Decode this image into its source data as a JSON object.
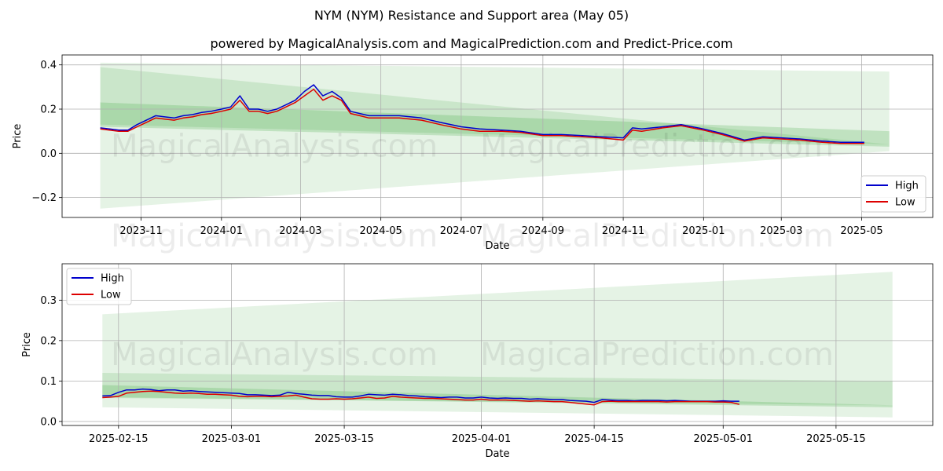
{
  "title": "NYM (NYM) Resistance and Support area (May 05)",
  "subtitle": "powered by MagicalAnalysis.com and MagicalPrediction.com and Predict-Price.com",
  "watermarks": [
    "MagicalAnalysis.com",
    "MagicalPrediction.com"
  ],
  "colors": {
    "high": "#0000cc",
    "low": "#dd0000",
    "band": "#2ca02c"
  },
  "chart_data": [
    {
      "type": "line",
      "xlabel": "Date",
      "ylabel": "Price",
      "xlim": [
        "2023-09-02",
        "2025-06-24"
      ],
      "ylim": [
        -0.29,
        0.445
      ],
      "x_ticks": [
        "2023-11",
        "2024-01",
        "2024-03",
        "2024-05",
        "2024-07",
        "2024-09",
        "2024-11",
        "2025-01",
        "2025-03",
        "2025-05"
      ],
      "y_ticks": [
        -0.2,
        0.0,
        0.2,
        0.4
      ],
      "y_tick_labels": [
        "−0.2",
        "0.0",
        "0.2",
        "0.4"
      ],
      "grid": true,
      "legend_position": "lower right",
      "legend": [
        "High",
        "Low"
      ],
      "bands": [
        {
          "x": [
            "2023-10-01",
            "2025-05-22"
          ],
          "upper": [
            0.41,
            0.37
          ],
          "lower": [
            -0.25,
            0.01
          ]
        },
        {
          "x": [
            "2023-10-01",
            "2025-05-22"
          ],
          "upper": [
            0.39,
            0.04
          ],
          "lower": [
            0.13,
            0.04
          ]
        },
        {
          "x": [
            "2023-10-01",
            "2025-05-22"
          ],
          "upper": [
            0.23,
            0.1
          ],
          "lower": [
            0.12,
            0.03
          ]
        }
      ],
      "series": [
        {
          "name": "High",
          "x": [
            "2023-10-01",
            "2023-10-08",
            "2023-10-15",
            "2023-10-22",
            "2023-10-29",
            "2023-11-05",
            "2023-11-12",
            "2023-11-19",
            "2023-11-26",
            "2023-12-03",
            "2023-12-10",
            "2023-12-17",
            "2023-12-24",
            "2024-01-01",
            "2024-01-08",
            "2024-01-15",
            "2024-01-22",
            "2024-01-29",
            "2024-02-05",
            "2024-02-12",
            "2024-02-19",
            "2024-02-26",
            "2024-03-04",
            "2024-03-11",
            "2024-03-18",
            "2024-03-25",
            "2024-04-01",
            "2024-04-08",
            "2024-04-15",
            "2024-04-22",
            "2024-05-01",
            "2024-05-15",
            "2024-06-01",
            "2024-06-15",
            "2024-07-01",
            "2024-07-15",
            "2024-08-01",
            "2024-08-15",
            "2024-09-01",
            "2024-09-15",
            "2024-10-01",
            "2024-10-15",
            "2024-11-01",
            "2024-11-08",
            "2024-11-15",
            "2024-12-01",
            "2024-12-15",
            "2025-01-01",
            "2025-01-15",
            "2025-02-01",
            "2025-02-15",
            "2025-03-01",
            "2025-03-15",
            "2025-04-01",
            "2025-04-15",
            "2025-05-03"
          ],
          "values": [
            0.115,
            0.11,
            0.105,
            0.105,
            0.13,
            0.15,
            0.17,
            0.165,
            0.16,
            0.17,
            0.175,
            0.185,
            0.19,
            0.2,
            0.21,
            0.26,
            0.2,
            0.2,
            0.19,
            0.2,
            0.22,
            0.24,
            0.28,
            0.31,
            0.26,
            0.28,
            0.25,
            0.19,
            0.18,
            0.17,
            0.17,
            0.17,
            0.16,
            0.14,
            0.12,
            0.11,
            0.105,
            0.1,
            0.085,
            0.085,
            0.08,
            0.075,
            0.07,
            0.115,
            0.11,
            0.12,
            0.13,
            0.11,
            0.09,
            0.06,
            0.075,
            0.07,
            0.065,
            0.055,
            0.05,
            0.05
          ]
        },
        {
          "name": "Low",
          "x": [
            "2023-10-01",
            "2023-10-08",
            "2023-10-15",
            "2023-10-22",
            "2023-10-29",
            "2023-11-05",
            "2023-11-12",
            "2023-11-19",
            "2023-11-26",
            "2023-12-03",
            "2023-12-10",
            "2023-12-17",
            "2023-12-24",
            "2024-01-01",
            "2024-01-08",
            "2024-01-15",
            "2024-01-22",
            "2024-01-29",
            "2024-02-05",
            "2024-02-12",
            "2024-02-19",
            "2024-02-26",
            "2024-03-04",
            "2024-03-11",
            "2024-03-18",
            "2024-03-25",
            "2024-04-01",
            "2024-04-08",
            "2024-04-15",
            "2024-04-22",
            "2024-05-01",
            "2024-05-15",
            "2024-06-01",
            "2024-06-15",
            "2024-07-01",
            "2024-07-15",
            "2024-08-01",
            "2024-08-15",
            "2024-09-01",
            "2024-09-15",
            "2024-10-01",
            "2024-10-15",
            "2024-11-01",
            "2024-11-08",
            "2024-11-15",
            "2024-12-01",
            "2024-12-15",
            "2025-01-01",
            "2025-01-15",
            "2025-02-01",
            "2025-02-15",
            "2025-03-01",
            "2025-03-15",
            "2025-04-01",
            "2025-04-15",
            "2025-05-03"
          ],
          "values": [
            0.11,
            0.105,
            0.1,
            0.1,
            0.12,
            0.14,
            0.16,
            0.155,
            0.15,
            0.16,
            0.165,
            0.175,
            0.18,
            0.19,
            0.2,
            0.24,
            0.19,
            0.19,
            0.18,
            0.19,
            0.21,
            0.23,
            0.26,
            0.29,
            0.24,
            0.26,
            0.24,
            0.18,
            0.17,
            0.16,
            0.16,
            0.16,
            0.15,
            0.13,
            0.11,
            0.1,
            0.1,
            0.095,
            0.08,
            0.08,
            0.075,
            0.07,
            0.06,
            0.105,
            0.1,
            0.115,
            0.125,
            0.105,
            0.085,
            0.055,
            0.07,
            0.065,
            0.06,
            0.05,
            0.045,
            0.045
          ]
        }
      ]
    },
    {
      "type": "line",
      "xlabel": "Date",
      "ylabel": "Price",
      "xlim": [
        "2025-02-08",
        "2025-05-27"
      ],
      "ylim": [
        -0.01,
        0.39
      ],
      "x_ticks": [
        "2025-02-15",
        "2025-03-01",
        "2025-03-15",
        "2025-04-01",
        "2025-04-15",
        "2025-05-01",
        "2025-05-15"
      ],
      "y_ticks": [
        0.0,
        0.1,
        0.2,
        0.3
      ],
      "y_tick_labels": [
        "0.0",
        "0.1",
        "0.2",
        "0.3"
      ],
      "grid": true,
      "legend_position": "upper left",
      "legend": [
        "High",
        "Low"
      ],
      "bands": [
        {
          "x": [
            "2025-02-13",
            "2025-05-22"
          ],
          "upper": [
            0.265,
            0.37
          ],
          "lower": [
            0.035,
            0.01
          ]
        },
        {
          "x": [
            "2025-02-13",
            "2025-05-22"
          ],
          "upper": [
            0.12,
            0.1
          ],
          "lower": [
            0.058,
            0.04
          ]
        },
        {
          "x": [
            "2025-02-13",
            "2025-05-22"
          ],
          "upper": [
            0.09,
            0.04
          ],
          "lower": [
            0.06,
            0.035
          ]
        }
      ],
      "series": [
        {
          "name": "High",
          "x": [
            "2025-02-13",
            "2025-02-14",
            "2025-02-15",
            "2025-02-16",
            "2025-02-17",
            "2025-02-18",
            "2025-02-19",
            "2025-02-20",
            "2025-02-21",
            "2025-02-22",
            "2025-02-23",
            "2025-02-24",
            "2025-02-25",
            "2025-02-26",
            "2025-02-27",
            "2025-02-28",
            "2025-03-01",
            "2025-03-02",
            "2025-03-03",
            "2025-03-04",
            "2025-03-05",
            "2025-03-06",
            "2025-03-07",
            "2025-03-08",
            "2025-03-09",
            "2025-03-10",
            "2025-03-11",
            "2025-03-12",
            "2025-03-13",
            "2025-03-14",
            "2025-03-15",
            "2025-03-16",
            "2025-03-17",
            "2025-03-18",
            "2025-03-19",
            "2025-03-20",
            "2025-03-21",
            "2025-03-22",
            "2025-03-23",
            "2025-03-24",
            "2025-03-25",
            "2025-03-26",
            "2025-03-27",
            "2025-03-28",
            "2025-03-29",
            "2025-03-30",
            "2025-03-31",
            "2025-04-01",
            "2025-04-02",
            "2025-04-03",
            "2025-04-04",
            "2025-04-05",
            "2025-04-06",
            "2025-04-07",
            "2025-04-08",
            "2025-04-09",
            "2025-04-10",
            "2025-04-11",
            "2025-04-12",
            "2025-04-13",
            "2025-04-14",
            "2025-04-15",
            "2025-04-16",
            "2025-04-17",
            "2025-04-18",
            "2025-04-19",
            "2025-04-20",
            "2025-04-21",
            "2025-04-22",
            "2025-04-23",
            "2025-04-24",
            "2025-04-25",
            "2025-04-26",
            "2025-04-27",
            "2025-04-28",
            "2025-04-29",
            "2025-04-30",
            "2025-05-01",
            "2025-05-02",
            "2025-05-03"
          ],
          "values": [
            0.063,
            0.064,
            0.072,
            0.078,
            0.078,
            0.08,
            0.079,
            0.076,
            0.078,
            0.078,
            0.075,
            0.076,
            0.074,
            0.073,
            0.072,
            0.071,
            0.07,
            0.069,
            0.066,
            0.066,
            0.065,
            0.064,
            0.065,
            0.072,
            0.069,
            0.067,
            0.065,
            0.064,
            0.064,
            0.061,
            0.06,
            0.06,
            0.063,
            0.067,
            0.066,
            0.065,
            0.067,
            0.066,
            0.064,
            0.063,
            0.061,
            0.06,
            0.059,
            0.06,
            0.06,
            0.058,
            0.058,
            0.06,
            0.058,
            0.057,
            0.058,
            0.057,
            0.057,
            0.055,
            0.056,
            0.055,
            0.054,
            0.054,
            0.052,
            0.051,
            0.05,
            0.047,
            0.054,
            0.053,
            0.052,
            0.052,
            0.051,
            0.052,
            0.052,
            0.052,
            0.051,
            0.052,
            0.051,
            0.05,
            0.05,
            0.05,
            0.05,
            0.051,
            0.05,
            0.05
          ]
        },
        {
          "name": "Low",
          "x": [
            "2025-02-13",
            "2025-02-14",
            "2025-02-15",
            "2025-02-16",
            "2025-02-17",
            "2025-02-18",
            "2025-02-19",
            "2025-02-20",
            "2025-02-21",
            "2025-02-22",
            "2025-02-23",
            "2025-02-24",
            "2025-02-25",
            "2025-02-26",
            "2025-02-27",
            "2025-02-28",
            "2025-03-01",
            "2025-03-02",
            "2025-03-03",
            "2025-03-04",
            "2025-03-05",
            "2025-03-06",
            "2025-03-07",
            "2025-03-08",
            "2025-03-09",
            "2025-03-10",
            "2025-03-11",
            "2025-03-12",
            "2025-03-13",
            "2025-03-14",
            "2025-03-15",
            "2025-03-16",
            "2025-03-17",
            "2025-03-18",
            "2025-03-19",
            "2025-03-20",
            "2025-03-21",
            "2025-03-22",
            "2025-03-23",
            "2025-03-24",
            "2025-03-25",
            "2025-03-26",
            "2025-03-27",
            "2025-03-28",
            "2025-03-29",
            "2025-03-30",
            "2025-03-31",
            "2025-04-01",
            "2025-04-02",
            "2025-04-03",
            "2025-04-04",
            "2025-04-05",
            "2025-04-06",
            "2025-04-07",
            "2025-04-08",
            "2025-04-09",
            "2025-04-10",
            "2025-04-11",
            "2025-04-12",
            "2025-04-13",
            "2025-04-14",
            "2025-04-15",
            "2025-04-16",
            "2025-04-17",
            "2025-04-18",
            "2025-04-19",
            "2025-04-20",
            "2025-04-21",
            "2025-04-22",
            "2025-04-23",
            "2025-04-24",
            "2025-04-25",
            "2025-04-26",
            "2025-04-27",
            "2025-04-28",
            "2025-04-29",
            "2025-04-30",
            "2025-05-01",
            "2025-05-02",
            "2025-05-03"
          ],
          "values": [
            0.059,
            0.06,
            0.062,
            0.07,
            0.072,
            0.074,
            0.075,
            0.074,
            0.072,
            0.07,
            0.069,
            0.07,
            0.069,
            0.067,
            0.067,
            0.066,
            0.065,
            0.062,
            0.061,
            0.062,
            0.062,
            0.061,
            0.062,
            0.063,
            0.065,
            0.06,
            0.056,
            0.055,
            0.055,
            0.056,
            0.055,
            0.056,
            0.058,
            0.06,
            0.057,
            0.058,
            0.062,
            0.06,
            0.059,
            0.058,
            0.057,
            0.057,
            0.056,
            0.055,
            0.054,
            0.053,
            0.053,
            0.055,
            0.053,
            0.053,
            0.053,
            0.052,
            0.051,
            0.05,
            0.051,
            0.05,
            0.049,
            0.049,
            0.047,
            0.045,
            0.043,
            0.041,
            0.049,
            0.05,
            0.049,
            0.049,
            0.049,
            0.049,
            0.049,
            0.049,
            0.048,
            0.049,
            0.049,
            0.049,
            0.049,
            0.049,
            0.048,
            0.048,
            0.047,
            0.042
          ]
        }
      ]
    }
  ]
}
